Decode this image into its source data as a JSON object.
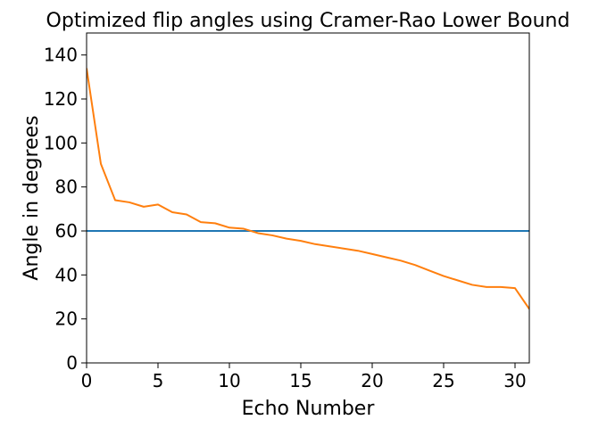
{
  "chart_data": {
    "type": "line",
    "title": "Optimized flip angles using Cramer-Rao Lower Bound",
    "xlabel": "Echo Number",
    "ylabel": "Angle in degrees",
    "xlim": [
      0,
      31
    ],
    "ylim": [
      0,
      150
    ],
    "xticks": [
      0,
      5,
      10,
      15,
      20,
      25,
      30
    ],
    "yticks": [
      0,
      20,
      40,
      60,
      80,
      100,
      120,
      140
    ],
    "grid": false,
    "series": [
      {
        "color": "#1f77b4",
        "x": [
          0,
          31
        ],
        "y": [
          60,
          60
        ]
      },
      {
        "color": "#ff7f0e",
        "x": [
          0,
          1,
          2,
          3,
          4,
          5,
          6,
          7,
          8,
          9,
          10,
          11,
          12,
          13,
          14,
          15,
          16,
          17,
          18,
          19,
          20,
          21,
          22,
          23,
          24,
          25,
          26,
          27,
          28,
          29,
          30,
          31
        ],
        "y": [
          134,
          90.5,
          74,
          73,
          71,
          72,
          68.5,
          67.5,
          64,
          63.5,
          61.5,
          61,
          59,
          58,
          56.5,
          55.5,
          54,
          53,
          52,
          51,
          49.5,
          48,
          46.5,
          44.5,
          42,
          39.5,
          37.5,
          35.5,
          34.5,
          34.5,
          34,
          24.5
        ]
      }
    ]
  }
}
